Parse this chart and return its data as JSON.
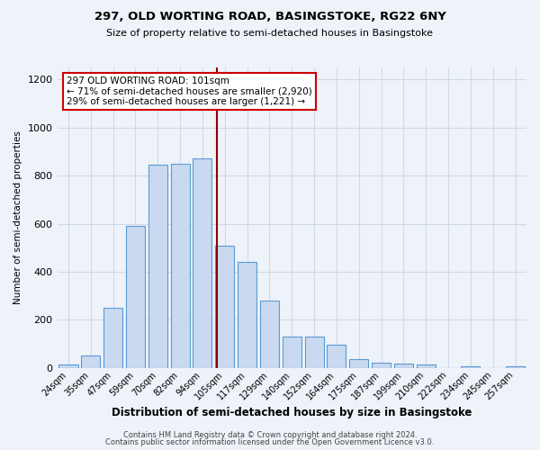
{
  "title1": "297, OLD WORTING ROAD, BASINGSTOKE, RG22 6NY",
  "title2": "Size of property relative to semi-detached houses in Basingstoke",
  "xlabel": "Distribution of semi-detached houses by size in Basingstoke",
  "ylabel": "Number of semi-detached properties",
  "categories": [
    "24sqm",
    "35sqm",
    "47sqm",
    "59sqm",
    "70sqm",
    "82sqm",
    "94sqm",
    "105sqm",
    "117sqm",
    "129sqm",
    "140sqm",
    "152sqm",
    "164sqm",
    "175sqm",
    "187sqm",
    "199sqm",
    "210sqm",
    "222sqm",
    "234sqm",
    "245sqm",
    "257sqm"
  ],
  "values": [
    12,
    52,
    250,
    590,
    845,
    850,
    870,
    510,
    440,
    280,
    128,
    128,
    95,
    35,
    22,
    18,
    15,
    0,
    8,
    0,
    8
  ],
  "bar_color": "#c9d9ef",
  "bar_edge_color": "#5b9bd5",
  "property_label": "297 OLD WORTING ROAD: 101sqm",
  "pct_smaller": 71,
  "num_smaller": 2920,
  "pct_larger": 29,
  "num_larger": 1221,
  "vline_pos": 6.636,
  "vline_color": "#8b0000",
  "annotation_box_color": "#ffffff",
  "annotation_box_edge_color": "#cc0000",
  "bg_color": "#eef2f9",
  "grid_color": "#d0d8e8",
  "footer1": "Contains HM Land Registry data © Crown copyright and database right 2024.",
  "footer2": "Contains public sector information licensed under the Open Government Licence v3.0.",
  "ylim": [
    0,
    1250
  ],
  "yticks": [
    0,
    200,
    400,
    600,
    800,
    1000,
    1200
  ]
}
